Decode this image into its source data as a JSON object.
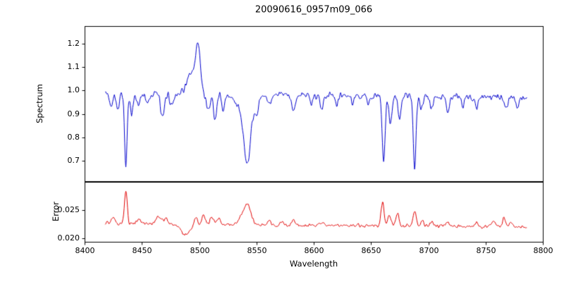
{
  "chart_data": {
    "type": "line",
    "title": "20090616_0957m09_066",
    "xlabel": "Wavelength",
    "xlim": [
      8400,
      8800
    ],
    "xticks": [
      8400,
      8450,
      8500,
      8550,
      8600,
      8650,
      8700,
      8750,
      8800
    ],
    "xtick_labels": [
      "8400",
      "8450",
      "8500",
      "8550",
      "8600",
      "8650",
      "8700",
      "8750",
      "8800"
    ],
    "x_start": 8418,
    "x_end": 8786,
    "x_step": 0.5,
    "noise_seed": 42,
    "grid": false,
    "legend": "none",
    "panels": [
      {
        "name": "spectrum",
        "ylabel": "Spectrum",
        "color": "#0000cc",
        "ylim": [
          0.613,
          1.275
        ],
        "ytick_values": [
          0.7,
          0.8,
          0.9,
          1.0,
          1.1,
          1.2
        ],
        "ytick_labels": [
          "0.7",
          "0.8",
          "0.9",
          "1.0",
          "1.1",
          "1.2"
        ],
        "baseline_start": 0.99,
        "baseline_end": 0.97,
        "noise_amp": 0.016,
        "features": [
          [
            8423,
            1.5,
            -0.05
          ],
          [
            8429,
            1.2,
            -0.07
          ],
          [
            8436,
            1.1,
            -0.32
          ],
          [
            8441,
            1.3,
            -0.09
          ],
          [
            8447,
            1.5,
            -0.05
          ],
          [
            8455,
            1.5,
            -0.04
          ],
          [
            8468,
            1.6,
            -0.11
          ],
          [
            8476,
            1.5,
            -0.05
          ],
          [
            8493,
            4.0,
            0.08
          ],
          [
            8499,
            2.0,
            0.19
          ],
          [
            8508,
            1.5,
            -0.07
          ],
          [
            8514,
            1.3,
            -0.11
          ],
          [
            8521,
            1.2,
            -0.07
          ],
          [
            8542,
            2.8,
            -0.22
          ],
          [
            8541,
            7.0,
            -0.08
          ],
          [
            8550,
            1.5,
            -0.05
          ],
          [
            8561,
            1.5,
            -0.04
          ],
          [
            8582,
            1.5,
            -0.07
          ],
          [
            8598,
            1.2,
            -0.04
          ],
          [
            8607,
            1.3,
            -0.06
          ],
          [
            8620,
            1.2,
            -0.04
          ],
          [
            8634,
            1.2,
            -0.04
          ],
          [
            8648,
            1.2,
            -0.04
          ],
          [
            8661,
            1.3,
            -0.28
          ],
          [
            8667,
            1.3,
            -0.12
          ],
          [
            8675,
            1.2,
            -0.1
          ],
          [
            8688,
            1.2,
            -0.31
          ],
          [
            8694,
            1.2,
            -0.06
          ],
          [
            8703,
            1.2,
            -0.05
          ],
          [
            8717,
            1.3,
            -0.06
          ],
          [
            8730,
            1.2,
            -0.04
          ],
          [
            8742,
            1.2,
            -0.04
          ],
          [
            8768,
            1.3,
            -0.05
          ],
          [
            8778,
            1.2,
            -0.04
          ]
        ]
      },
      {
        "name": "error",
        "ylabel": "Error",
        "color": "#e00000",
        "ylim": [
          0.0194,
          0.0299
        ],
        "ytick_values": [
          0.02,
          0.025
        ],
        "ytick_labels": [
          "0.020",
          "0.025"
        ],
        "baseline_start": 0.0226,
        "baseline_end": 0.022,
        "noise_amp": 0.00035,
        "features": [
          [
            8425,
            1.5,
            0.0012
          ],
          [
            8436,
            1.2,
            0.0058
          ],
          [
            8448,
            2.0,
            0.0008
          ],
          [
            8465,
            2.5,
            0.0013
          ],
          [
            8471,
            1.5,
            0.001
          ],
          [
            8488,
            4.0,
            -0.0018
          ],
          [
            8497,
            1.5,
            0.0012
          ],
          [
            8504,
            1.5,
            0.0016
          ],
          [
            8511,
            1.5,
            0.0014
          ],
          [
            8517,
            1.5,
            0.001
          ],
          [
            8536,
            2.0,
            0.001
          ],
          [
            8542,
            3.0,
            0.0038
          ],
          [
            8561,
            1.5,
            0.0007
          ],
          [
            8572,
            1.5,
            0.0006
          ],
          [
            8582,
            1.5,
            0.0008
          ],
          [
            8607,
            1.5,
            0.0006
          ],
          [
            8660,
            1.3,
            0.0042
          ],
          [
            8666,
            1.5,
            0.0018
          ],
          [
            8673,
            1.3,
            0.0022
          ],
          [
            8688,
            1.3,
            0.0026
          ],
          [
            8695,
            1.3,
            0.001
          ],
          [
            8703,
            1.3,
            0.0008
          ],
          [
            8717,
            1.5,
            0.0007
          ],
          [
            8742,
            1.5,
            0.0006
          ],
          [
            8757,
            1.5,
            0.001
          ],
          [
            8766,
            1.4,
            0.0016
          ],
          [
            8772,
            1.3,
            0.0008
          ]
        ]
      }
    ]
  }
}
